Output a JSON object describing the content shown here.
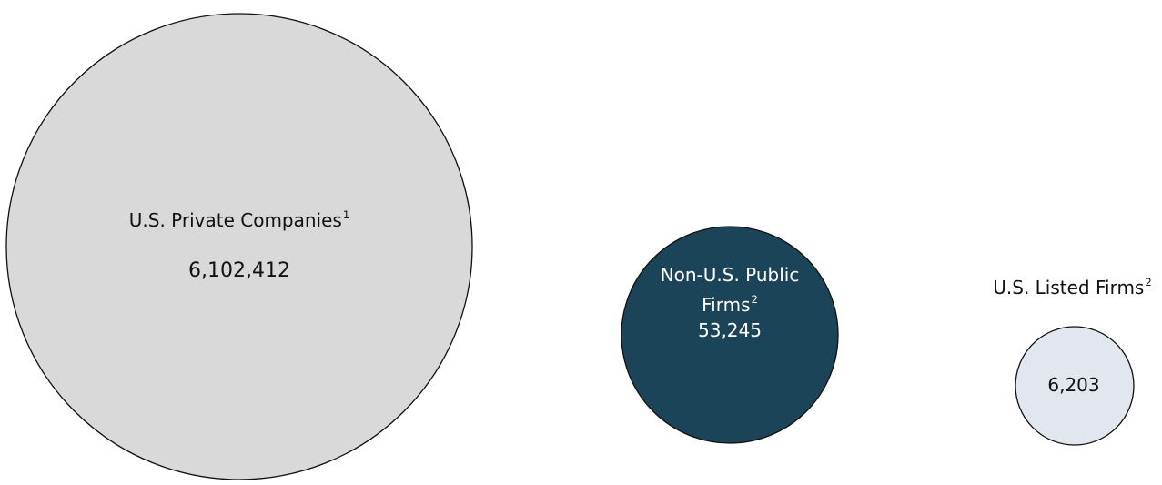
{
  "colors": {
    "private_fill": "#d9d9d9",
    "non_us_fill": "#1c4459",
    "listed_fill": "#e2e6ee",
    "outline": "#111111"
  },
  "groups": [
    {
      "id": "us-private",
      "label": "U.S. Private Companies",
      "footnote": "1",
      "value_text": "6,102,412",
      "value": 6102412
    },
    {
      "id": "non-us-public",
      "label_line1": "Non-U.S. Public",
      "label_line2": "Firms",
      "footnote": "2",
      "value_text": "53,245",
      "value": 53245
    },
    {
      "id": "us-listed",
      "label": "U.S. Listed Firms",
      "footnote": "2",
      "value_text": "6,203",
      "value": 6203
    }
  ]
}
